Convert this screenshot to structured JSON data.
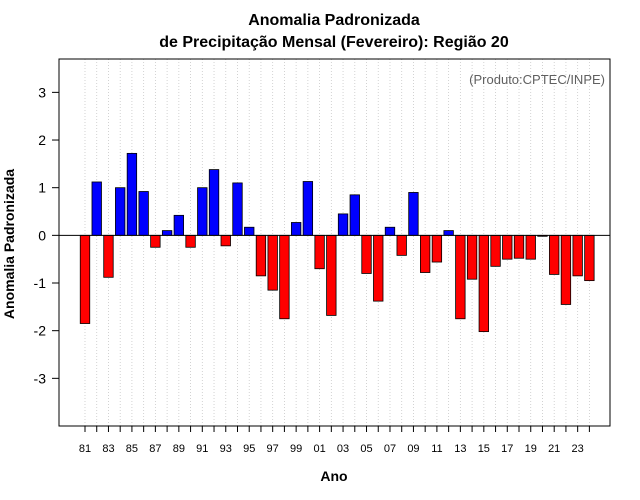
{
  "chart_data": {
    "type": "bar",
    "title_line1": "Anomalia Padronizada",
    "title_line2": "de Precipitação Mensal (Fevereiro): Região 20",
    "xlabel": "Ano",
    "ylabel": "Anomalia Padronizada",
    "annotation": "(Produto:CPTEC/INPE)",
    "ylim": [
      -4,
      3.7
    ],
    "yticks": [
      -3,
      -2,
      -1,
      0,
      1,
      2,
      3
    ],
    "grid": "vertical dotted",
    "colors": {
      "positive": "#0000ff",
      "negative": "#ff0000"
    },
    "categories": [
      "81",
      "82",
      "83",
      "84",
      "85",
      "86",
      "87",
      "88",
      "89",
      "90",
      "91",
      "92",
      "93",
      "94",
      "95",
      "96",
      "97",
      "98",
      "99",
      "00",
      "01",
      "02",
      "03",
      "04",
      "05",
      "06",
      "07",
      "08",
      "09",
      "10",
      "11",
      "12",
      "13",
      "14",
      "15",
      "16",
      "17",
      "18",
      "19",
      "20",
      "21",
      "22",
      "23",
      "24"
    ],
    "xtick_labels": [
      "81",
      "83",
      "85",
      "87",
      "89",
      "91",
      "93",
      "95",
      "97",
      "99",
      "01",
      "03",
      "05",
      "07",
      "09",
      "11",
      "13",
      "15",
      "17",
      "19",
      "21",
      "23"
    ],
    "values": [
      -1.85,
      1.12,
      -0.88,
      1.0,
      1.72,
      0.92,
      -0.25,
      0.1,
      0.42,
      -0.25,
      1.0,
      1.38,
      -0.22,
      1.1,
      0.17,
      -0.85,
      -1.15,
      -1.75,
      0.27,
      1.13,
      -0.7,
      -1.68,
      0.45,
      0.85,
      -0.8,
      -1.38,
      0.17,
      -0.42,
      0.9,
      -0.78,
      -0.56,
      0.1,
      -1.75,
      -0.92,
      -2.02,
      -0.65,
      -0.5,
      -0.48,
      -0.5,
      -0.02,
      -0.82,
      -1.45,
      -0.85,
      -0.95
    ]
  }
}
